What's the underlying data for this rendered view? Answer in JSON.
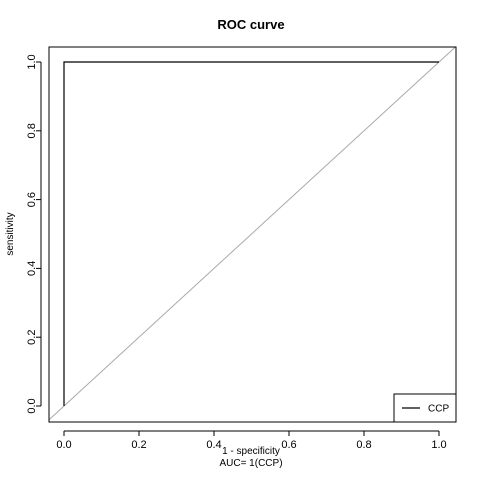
{
  "chart_data": {
    "type": "line",
    "title": "ROC curve",
    "xlabel": "1 - specificity",
    "ylabel": "sensitivity",
    "annotation": "AUC= 1(CCP)",
    "xlim": [
      0,
      1
    ],
    "ylim": [
      0,
      1
    ],
    "x_ticks": [
      "0.0",
      "0.2",
      "0.4",
      "0.6",
      "0.8",
      "1.0"
    ],
    "y_ticks": [
      "0.0",
      "0.2",
      "0.4",
      "0.6",
      "0.8",
      "1.0"
    ],
    "grid": false,
    "legend_position": "bottom-right",
    "series": [
      {
        "name": "CCP",
        "color": "#000000",
        "x": [
          0,
          0,
          1
        ],
        "y": [
          0,
          1,
          1
        ]
      }
    ],
    "reference_line": {
      "color": "#aaaaaa",
      "x": [
        0,
        1
      ],
      "y": [
        0,
        1
      ]
    }
  }
}
